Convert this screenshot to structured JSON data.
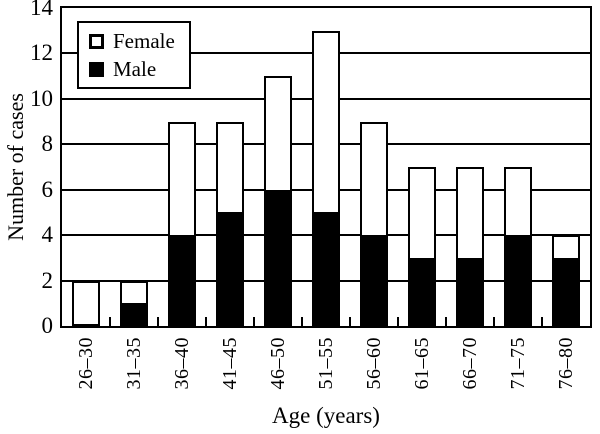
{
  "figure": {
    "background_color": "#ffffff",
    "ink_color": "#000000"
  },
  "legend": {
    "items": [
      {
        "label": "Female",
        "swatch": "open-square",
        "color": "#ffffff"
      },
      {
        "label": "Male",
        "swatch": "filled-square",
        "color": "#000000"
      }
    ]
  },
  "chart_data": {
    "type": "bar",
    "stacked": true,
    "title": "",
    "xlabel": "Age (years)",
    "ylabel": "Number of cases",
    "categories": [
      "26–30",
      "31–35",
      "36–40",
      "41–45",
      "46–50",
      "51–55",
      "56–60",
      "61–65",
      "66–70",
      "71–75",
      "76–80"
    ],
    "series": [
      {
        "name": "Male",
        "color": "#000000",
        "values": [
          0,
          1,
          4,
          5,
          6,
          5,
          4,
          3,
          3,
          4,
          3
        ]
      },
      {
        "name": "Female",
        "color": "#ffffff",
        "values": [
          2,
          1,
          5,
          4,
          5,
          8,
          5,
          4,
          4,
          3,
          1
        ]
      }
    ],
    "totals": [
      2,
      2,
      9,
      9,
      11,
      13,
      9,
      7,
      7,
      7,
      4
    ],
    "ylim": [
      0,
      14
    ],
    "yticks": [
      0,
      2,
      4,
      6,
      8,
      10,
      12,
      14
    ],
    "grid": "horizontal",
    "legend_position": "top-left"
  }
}
